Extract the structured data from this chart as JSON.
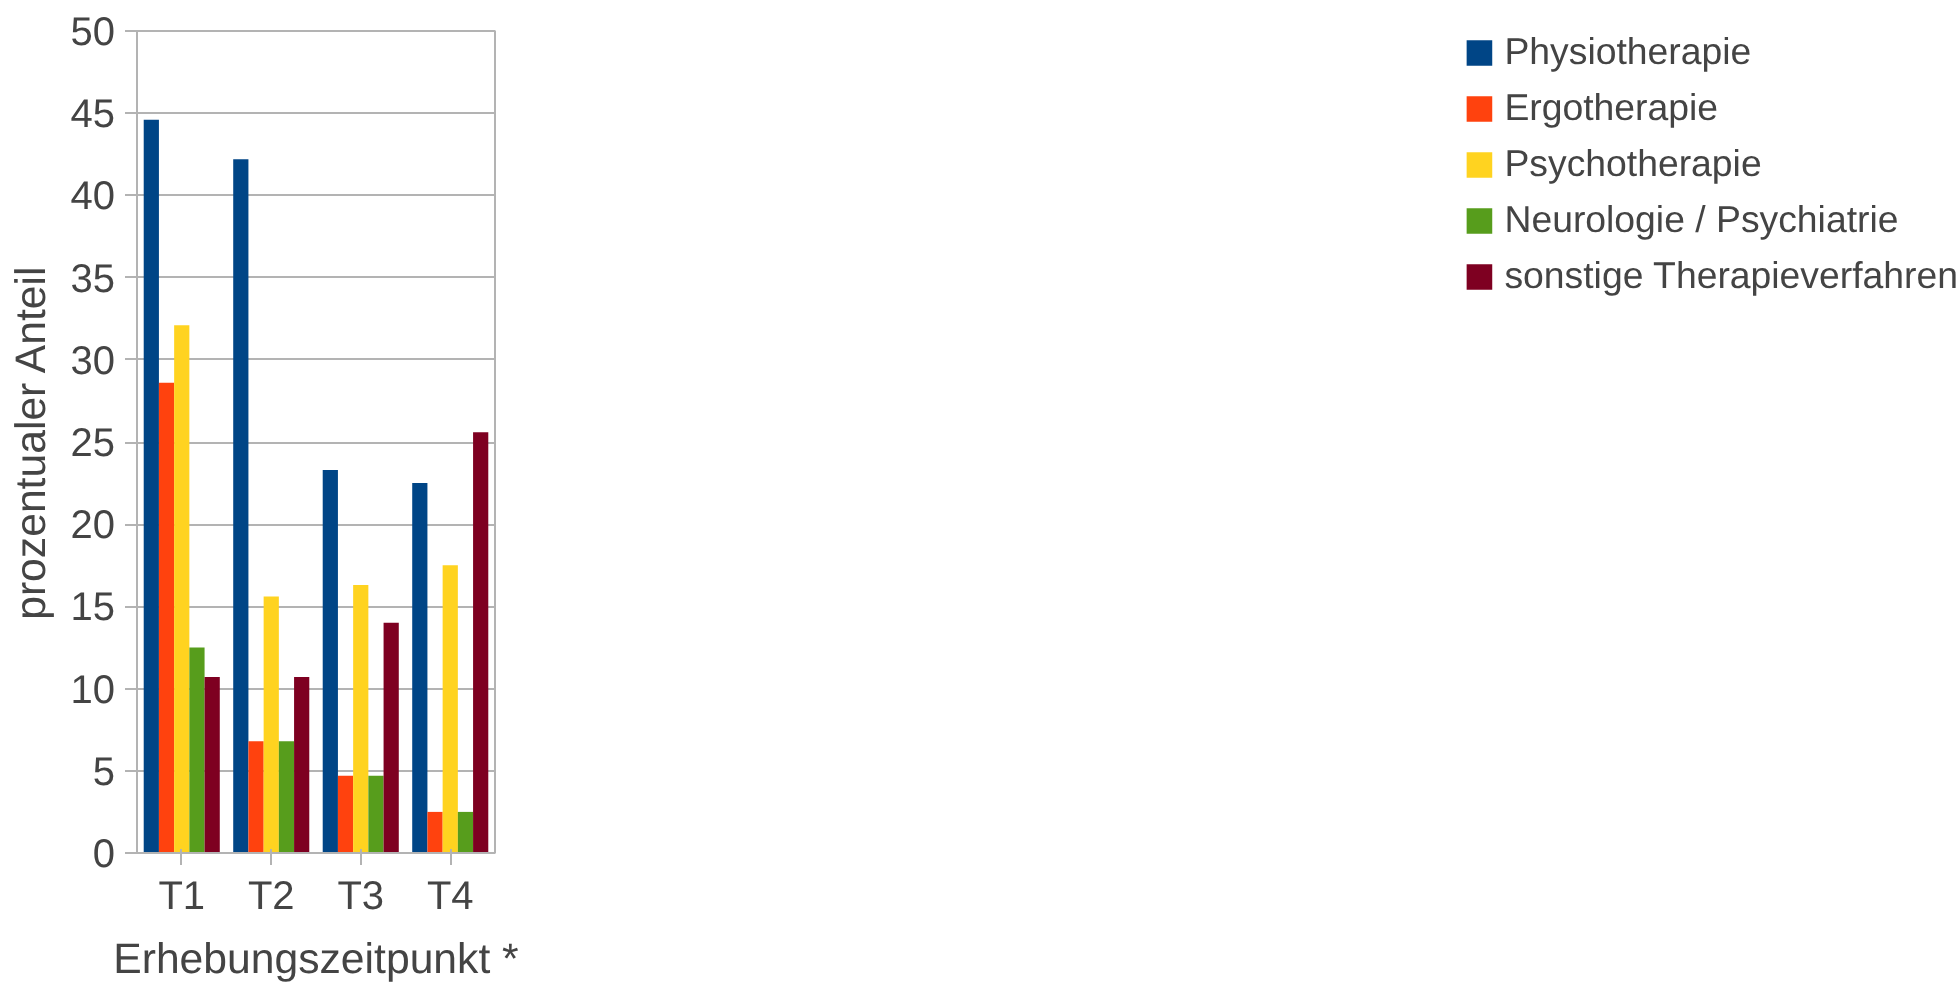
{
  "chart_data": {
    "type": "bar",
    "xlabel": "Erhebungszeitpunkt *",
    "ylabel": "prozentualer Anteil",
    "categories": [
      "T1",
      "T2",
      "T3",
      "T4"
    ],
    "series": [
      {
        "name": "Physiotherapie",
        "color": "#004586",
        "values": [
          44.6,
          42.2,
          23.3,
          22.5
        ]
      },
      {
        "name": "Ergotherapie",
        "color": "#ff420e",
        "values": [
          28.6,
          6.8,
          4.7,
          2.5
        ]
      },
      {
        "name": "Psychotherapie",
        "color": "#ffd320",
        "values": [
          32.1,
          15.6,
          16.3,
          17.5
        ]
      },
      {
        "name": "Neurologie / Psychiatrie",
        "color": "#579d1c",
        "values": [
          12.5,
          6.8,
          4.7,
          2.5
        ]
      },
      {
        "name": "sonstige Therapieverfahren",
        "color": "#7e0021",
        "values": [
          10.7,
          10.7,
          14.0,
          25.6
        ]
      }
    ],
    "ylim": [
      0,
      50
    ],
    "yticks": [
      0,
      5,
      10,
      15,
      20,
      25,
      30,
      35,
      40,
      45,
      50
    ],
    "grid": "y",
    "legend": "right"
  }
}
